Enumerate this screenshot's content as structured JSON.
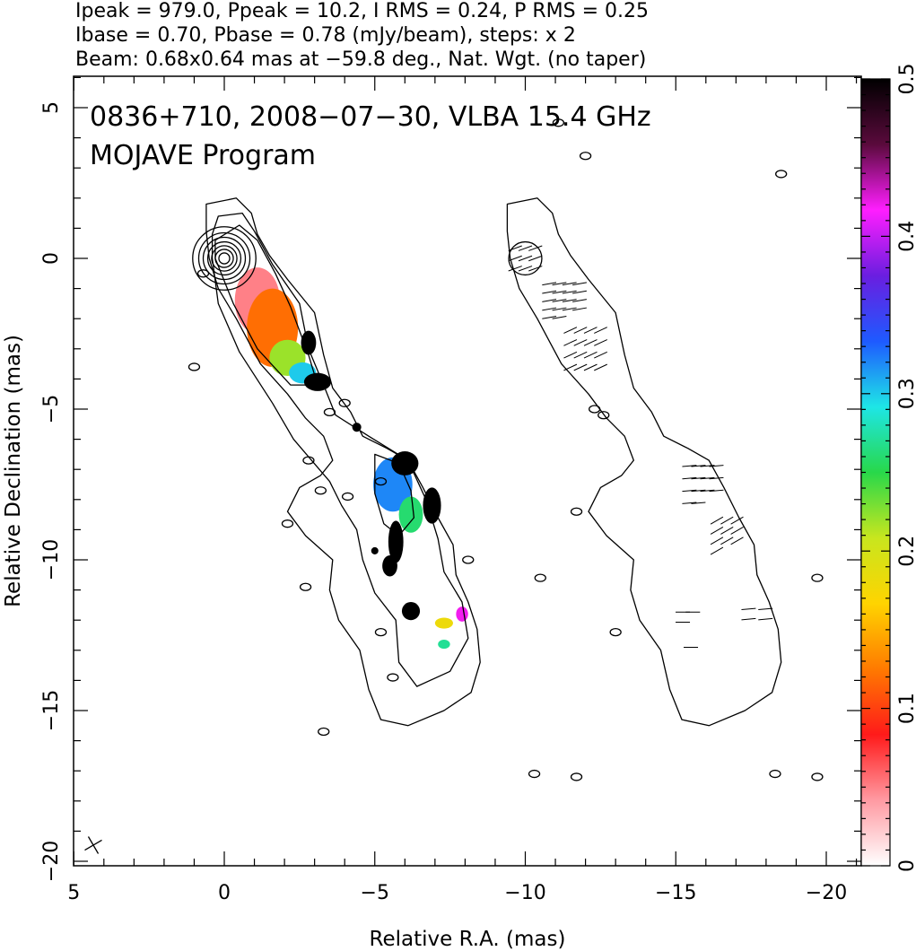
{
  "header": {
    "line1": "Ipeak = 979.0, Ppeak = 10.2, I RMS = 0.24, P RMS = 0.25",
    "line2": "Ibase = 0.70, Pbase = 0.78 (mJy/beam), steps: x 2",
    "line3": "Beam: 0.68x0.64 mas at −59.8 deg., Nat. Wgt. (no taper)"
  },
  "plot_title": {
    "line1": "0836+710, 2008−07−30, VLBA 15.4 GHz",
    "line2": "MOJAVE Program"
  },
  "colors": {
    "frame": "#000000",
    "background": "#ffffff",
    "colormap": [
      "#ffffff",
      "#ff9aa2",
      "#ff1a1a",
      "#ff7a00",
      "#ffd400",
      "#c8e61e",
      "#28d84a",
      "#1ee6e6",
      "#1e5aff",
      "#6a1ee0",
      "#ff1eff",
      "#5a0a3c",
      "#000000"
    ]
  },
  "chart_data": {
    "type": "heatmap",
    "xlabel": "Relative R.A. (mas)",
    "ylabel": "Relative Declination (mas)",
    "xlim": [
      5,
      -21
    ],
    "ylim": [
      -20.2,
      6
    ],
    "x_ticks": [
      5,
      0,
      -5,
      -10,
      -15,
      -20
    ],
    "x_tick_labels": [
      "5",
      "0",
      "−5",
      "−10",
      "−15",
      "−20"
    ],
    "y_ticks": [
      5,
      0,
      -5,
      -10,
      -15,
      -20
    ],
    "y_tick_labels": [
      "5",
      "0",
      "−5",
      "−10",
      "−15",
      "−20"
    ],
    "colorbar": {
      "range": [
        0,
        0.5
      ],
      "ticks": [
        0,
        0.1,
        0.2,
        0.3,
        0.4,
        0.5
      ],
      "tick_labels": [
        "0",
        "0.1",
        "0.2",
        "0.3",
        "0.4",
        "0.5"
      ]
    },
    "beam": {
      "major_mas": 0.68,
      "minor_mas": 0.64,
      "pa_deg": -59.8
    },
    "source": "0836+710",
    "date": "2008-07-30",
    "frequency_ghz": 15.4,
    "ipeak_mjy_beam": 979.0,
    "ppeak_mjy_beam": 10.2,
    "i_rms": 0.24,
    "p_rms": 0.25,
    "ibase": 0.7,
    "pbase": 0.78,
    "contour_step_factor": 2,
    "panels": [
      {
        "name": "left",
        "ra_offset_mas": 0,
        "content": "Stokes I contours with fractional polarization color overlay",
        "contours": [
          [
            [
              0.5,
              0
            ],
            [
              0.6,
              0.9
            ],
            [
              0.6,
              1.8
            ],
            [
              -0.4,
              2.0
            ],
            [
              -0.9,
              1.5
            ],
            [
              -1.1,
              0.8
            ],
            [
              -1.5,
              0.1
            ],
            [
              -2.1,
              -0.7
            ],
            [
              -3.0,
              -1.8
            ],
            [
              -3.3,
              -3.2
            ],
            [
              -3.6,
              -4.3
            ],
            [
              -4.2,
              -5.1
            ],
            [
              -4.6,
              -5.9
            ],
            [
              -5.4,
              -6.3
            ],
            [
              -6.1,
              -6.7
            ],
            [
              -6.6,
              -7.6
            ],
            [
              -7.1,
              -8.6
            ],
            [
              -7.6,
              -9.5
            ],
            [
              -7.7,
              -10.5
            ],
            [
              -8.1,
              -11.4
            ],
            [
              -8.4,
              -12.3
            ],
            [
              -8.5,
              -13.4
            ],
            [
              -8.2,
              -14.4
            ],
            [
              -7.3,
              -15.0
            ],
            [
              -6.1,
              -15.5
            ],
            [
              -5.2,
              -15.3
            ],
            [
              -4.8,
              -14.3
            ],
            [
              -4.5,
              -13.0
            ],
            [
              -3.8,
              -12.0
            ],
            [
              -3.5,
              -11.0
            ],
            [
              -3.6,
              -10.0
            ],
            [
              -2.7,
              -9.2
            ],
            [
              -2.1,
              -8.4
            ],
            [
              -2.5,
              -7.6
            ],
            [
              -3.2,
              -7.2
            ],
            [
              -3.6,
              -6.7
            ],
            [
              -3.3,
              -5.9
            ],
            [
              -2.7,
              -5.3
            ],
            [
              -2.1,
              -4.5
            ],
            [
              -1.2,
              -3.5
            ],
            [
              -0.4,
              -2.0
            ],
            [
              0.2,
              -1.0
            ],
            [
              0.5,
              0
            ]
          ],
          [
            [
              0.4,
              0
            ],
            [
              0.4,
              0.8
            ],
            [
              0.2,
              1.4
            ],
            [
              -0.6,
              1.5
            ],
            [
              -1.0,
              0.9
            ],
            [
              -1.6,
              -0.2
            ],
            [
              -2.5,
              -1.5
            ],
            [
              -2.8,
              -3.0
            ],
            [
              -3.3,
              -4.2
            ],
            [
              -3.7,
              -5.2
            ],
            [
              -4.8,
              -5.9
            ],
            [
              -6.1,
              -6.7
            ],
            [
              -6.7,
              -8.0
            ],
            [
              -7.1,
              -9.3
            ],
            [
              -7.3,
              -10.4
            ],
            [
              -7.9,
              -11.4
            ],
            [
              -8.1,
              -12.6
            ],
            [
              -7.5,
              -13.7
            ],
            [
              -6.4,
              -14.2
            ],
            [
              -5.8,
              -13.4
            ],
            [
              -5.7,
              -12.0
            ],
            [
              -5.0,
              -11.1
            ],
            [
              -4.6,
              -10.0
            ],
            [
              -4.4,
              -9.0
            ],
            [
              -3.9,
              -8.2
            ],
            [
              -3.5,
              -7.4
            ],
            [
              -2.3,
              -6.0
            ],
            [
              -1.6,
              -4.8
            ],
            [
              -0.5,
              -3.1
            ],
            [
              0.2,
              -1.5
            ],
            [
              0.4,
              0
            ]
          ],
          [
            [
              0.3,
              0
            ],
            [
              0.3,
              0.6
            ],
            [
              -0.5,
              1.1
            ],
            [
              -1.1,
              0.6
            ],
            [
              -1.7,
              -0.5
            ],
            [
              -2.2,
              -1.6
            ],
            [
              -2.8,
              -3.2
            ],
            [
              -3.1,
              -4.2
            ],
            [
              -2.2,
              -4.2
            ],
            [
              -1.1,
              -3.0
            ],
            [
              -0.3,
              -1.5
            ],
            [
              0.3,
              0
            ]
          ],
          [
            [
              -5.0,
              -6.5
            ],
            [
              -5.8,
              -6.8
            ],
            [
              -6.2,
              -7.7
            ],
            [
              -6.3,
              -8.6
            ],
            [
              -5.8,
              -9.2
            ],
            [
              -5.3,
              -8.8
            ],
            [
              -5.0,
              -7.8
            ],
            [
              -5.0,
              -6.5
            ]
          ]
        ],
        "core_contour_radii_mas": [
          1.05,
          0.85,
          0.7,
          0.55,
          0.42,
          0.3,
          0.18
        ],
        "polarization_patches": [
          {
            "cx": -1.1,
            "cy": -1.4,
            "rx": 0.75,
            "ry": 1.1,
            "fpol": 0.05
          },
          {
            "cx": -1.6,
            "cy": -2.3,
            "rx": 0.85,
            "ry": 1.3,
            "fpol": 0.12
          },
          {
            "cx": -2.1,
            "cy": -3.3,
            "rx": 0.6,
            "ry": 0.6,
            "fpol": 0.22
          },
          {
            "cx": -2.6,
            "cy": -3.8,
            "rx": 0.45,
            "ry": 0.35,
            "fpol": 0.3
          },
          {
            "cx": -3.1,
            "cy": -4.1,
            "rx": 0.45,
            "ry": 0.3,
            "fpol": 0.5
          },
          {
            "cx": -2.8,
            "cy": -2.8,
            "rx": 0.25,
            "ry": 0.4,
            "fpol": 0.5
          },
          {
            "cx": -5.6,
            "cy": -7.5,
            "rx": 0.65,
            "ry": 0.9,
            "fpol": 0.32
          },
          {
            "cx": -6.2,
            "cy": -8.5,
            "rx": 0.4,
            "ry": 0.6,
            "fpol": 0.26
          },
          {
            "cx": -6.0,
            "cy": -6.8,
            "rx": 0.45,
            "ry": 0.4,
            "fpol": 0.5
          },
          {
            "cx": -6.9,
            "cy": -8.2,
            "rx": 0.3,
            "ry": 0.6,
            "fpol": 0.5
          },
          {
            "cx": -5.7,
            "cy": -9.4,
            "rx": 0.25,
            "ry": 0.7,
            "fpol": 0.5
          },
          {
            "cx": -5.5,
            "cy": -10.2,
            "rx": 0.25,
            "ry": 0.35,
            "fpol": 0.5
          },
          {
            "cx": -6.2,
            "cy": -11.7,
            "rx": 0.3,
            "ry": 0.3,
            "fpol": 0.5
          },
          {
            "cx": -7.3,
            "cy": -12.1,
            "rx": 0.3,
            "ry": 0.18,
            "fpol": 0.18
          },
          {
            "cx": -7.9,
            "cy": -11.8,
            "rx": 0.2,
            "ry": 0.25,
            "fpol": 0.42
          },
          {
            "cx": -7.3,
            "cy": -12.8,
            "rx": 0.2,
            "ry": 0.15,
            "fpol": 0.27
          },
          {
            "cx": -4.4,
            "cy": -5.6,
            "rx": 0.15,
            "ry": 0.15,
            "fpol": 0.5
          },
          {
            "cx": -5.0,
            "cy": -9.7,
            "rx": 0.12,
            "ry": 0.12,
            "fpol": 0.5
          }
        ]
      },
      {
        "name": "right",
        "ra_offset_mas": -10,
        "content": "Stokes I outer contour with polarization EVPA vectors",
        "contours": [
          [
            [
              0.5,
              0
            ],
            [
              0.6,
              0.9
            ],
            [
              0.6,
              1.8
            ],
            [
              -0.4,
              2.0
            ],
            [
              -0.9,
              1.5
            ],
            [
              -1.1,
              0.8
            ],
            [
              -1.5,
              0.1
            ],
            [
              -2.1,
              -0.7
            ],
            [
              -3.0,
              -1.8
            ],
            [
              -3.3,
              -3.2
            ],
            [
              -3.6,
              -4.3
            ],
            [
              -4.2,
              -5.1
            ],
            [
              -4.6,
              -5.9
            ],
            [
              -5.4,
              -6.3
            ],
            [
              -6.1,
              -6.7
            ],
            [
              -6.6,
              -7.6
            ],
            [
              -7.1,
              -8.6
            ],
            [
              -7.6,
              -9.5
            ],
            [
              -7.7,
              -10.5
            ],
            [
              -8.1,
              -11.4
            ],
            [
              -8.4,
              -12.3
            ],
            [
              -8.5,
              -13.4
            ],
            [
              -8.2,
              -14.4
            ],
            [
              -7.3,
              -15.0
            ],
            [
              -6.1,
              -15.5
            ],
            [
              -5.2,
              -15.3
            ],
            [
              -4.8,
              -14.3
            ],
            [
              -4.5,
              -13.0
            ],
            [
              -3.8,
              -12.0
            ],
            [
              -3.5,
              -11.0
            ],
            [
              -3.6,
              -10.0
            ],
            [
              -2.7,
              -9.2
            ],
            [
              -2.1,
              -8.4
            ],
            [
              -2.5,
              -7.6
            ],
            [
              -3.2,
              -7.2
            ],
            [
              -3.6,
              -6.7
            ],
            [
              -3.3,
              -5.9
            ],
            [
              -2.7,
              -5.3
            ],
            [
              -2.1,
              -4.5
            ],
            [
              -1.2,
              -3.5
            ],
            [
              -0.4,
              -2.0
            ],
            [
              0.2,
              -1.0
            ],
            [
              0.5,
              0
            ]
          ]
        ],
        "core_contour_radii_mas": [
          0.55
        ],
        "evpa_regions": [
          {
            "cx": 0,
            "cy": 0,
            "rx": 0.6,
            "ry": 0.6,
            "angle_deg": 20,
            "n": 9
          },
          {
            "cx": -1.3,
            "cy": -1.4,
            "rx": 0.9,
            "ry": 1.0,
            "angle_deg": 10,
            "n": 18
          },
          {
            "cx": -2.0,
            "cy": -3.0,
            "rx": 0.9,
            "ry": 1.1,
            "angle_deg": 25,
            "n": 16
          },
          {
            "cx": -5.9,
            "cy": -7.5,
            "rx": 0.8,
            "ry": 1.1,
            "angle_deg": 5,
            "n": 14
          },
          {
            "cx": -6.7,
            "cy": -9.2,
            "rx": 0.6,
            "ry": 0.9,
            "angle_deg": 30,
            "n": 10
          },
          {
            "cx": -7.7,
            "cy": -11.8,
            "rx": 0.5,
            "ry": 0.3,
            "angle_deg": 5,
            "n": 4
          },
          {
            "cx": -5.4,
            "cy": -11.9,
            "rx": 0.3,
            "ry": 0.3,
            "angle_deg": 0,
            "n": 3
          },
          {
            "cx": -5.5,
            "cy": -12.9,
            "rx": 0.2,
            "ry": 0.2,
            "angle_deg": 0,
            "n": 1
          }
        ]
      }
    ],
    "isolated_contours_mas": [
      [
        0.7,
        -0.5
      ],
      [
        1.0,
        -3.6
      ],
      [
        -3.5,
        -5.1
      ],
      [
        -2.8,
        -6.7
      ],
      [
        -4.0,
        -4.8
      ],
      [
        -3.2,
        -7.7
      ],
      [
        -4.1,
        -7.9
      ],
      [
        -5.2,
        -7.4
      ],
      [
        -2.1,
        -8.8
      ],
      [
        -8.1,
        -10.0
      ],
      [
        -5.2,
        -12.4
      ],
      [
        -5.6,
        -13.9
      ],
      [
        -3.3,
        -15.7
      ],
      [
        -2.7,
        -10.9
      ],
      [
        -10.5,
        -10.6
      ],
      [
        -11.7,
        -8.4
      ],
      [
        -12.3,
        -5.0
      ],
      [
        -12.6,
        -5.2
      ],
      [
        -13.0,
        -12.4
      ],
      [
        -10.3,
        -17.1
      ],
      [
        -11.7,
        -17.2
      ],
      [
        -18.3,
        -17.1
      ],
      [
        -19.7,
        -17.2
      ],
      [
        -19.7,
        -10.6
      ],
      [
        -18.5,
        2.8
      ],
      [
        -11.1,
        4.5
      ],
      [
        -12.0,
        3.4
      ]
    ]
  }
}
